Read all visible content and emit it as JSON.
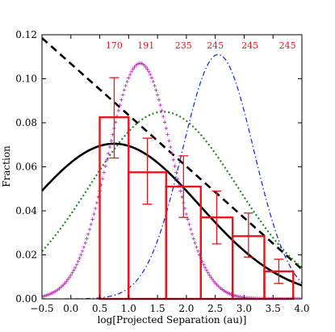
{
  "chart_data": {
    "type": "bar",
    "title": "",
    "xlabel": "log[Projected Separation (au)]",
    "ylabel": "Fraction",
    "xlim": [
      -0.5,
      4.0
    ],
    "ylim": [
      0.0,
      0.12
    ],
    "xticks": [
      "−0.5",
      "0.0",
      "0.5",
      "1.0",
      "1.5",
      "2.0",
      "2.5",
      "3.0",
      "3.5",
      "4.0"
    ],
    "yticks": [
      "0.00",
      "0.02",
      "0.04",
      "0.06",
      "0.08",
      "0.10",
      "0.12"
    ],
    "grid": false,
    "colors": {
      "histogram": "#e8141e",
      "solid_curve": "#000000",
      "dashed_line": "#000000",
      "dotted_curve": "#1a8a1a",
      "dashdot_curve": "#1f2fe0",
      "plus_curve": "#c030c0",
      "count_labels": "#e8141e"
    },
    "histogram": {
      "bin_edges": [
        0.5,
        1.0,
        1.65,
        2.25,
        2.8,
        3.35,
        3.85
      ],
      "values": [
        0.0825,
        0.0575,
        0.051,
        0.037,
        0.0285,
        0.0125
      ],
      "error_low": [
        0.064,
        0.043,
        0.037,
        0.025,
        0.019,
        0.007
      ],
      "error_high": [
        0.1005,
        0.073,
        0.065,
        0.049,
        0.039,
        0.018
      ]
    },
    "count_labels": [
      {
        "text": "170",
        "x": 0.75
      },
      {
        "text": "191",
        "x": 1.3
      },
      {
        "text": "235",
        "x": 1.95
      },
      {
        "text": "245",
        "x": 2.5
      },
      {
        "text": "245",
        "x": 3.1
      },
      {
        "text": "245",
        "x": 3.75
      }
    ],
    "curves": [
      {
        "style": "solid",
        "form": "gaussian",
        "peak_x": 0.75,
        "peak_y": 0.0705,
        "sigma": 1.47
      },
      {
        "style": "dashed",
        "form": "linear",
        "x": [
          -0.5,
          4.0
        ],
        "y": [
          0.1185,
          0.0135
        ]
      },
      {
        "style": "dotted",
        "form": "gaussian",
        "peak_x": 1.6,
        "peak_y": 0.085,
        "sigma": 1.27
      },
      {
        "style": "dashdot",
        "form": "gaussian",
        "peak_x": 2.55,
        "peak_y": 0.111,
        "sigma": 0.62
      },
      {
        "style": "plus",
        "form": "gaussian",
        "peak_x": 1.2,
        "peak_y": 0.107,
        "sigma": 0.56
      }
    ]
  }
}
